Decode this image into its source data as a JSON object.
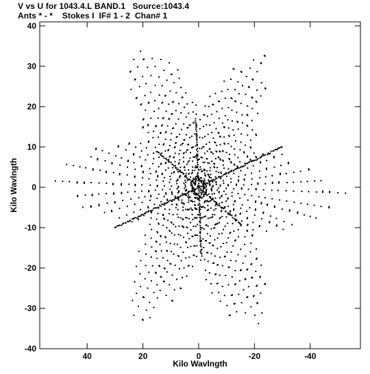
{
  "header": {
    "line1": "V vs U for 1043.4.L BAND.1   Source:1043.4",
    "line2": "Ants * - *    Stokes I  IF# 1 - 2  Chan# 1"
  },
  "chart_data": {
    "type": "scatter",
    "title": "V vs U for 1043.4.L BAND.1   Source:1043.4",
    "subtitle": "Ants * - *    Stokes I  IF# 1 - 2  Chan# 1",
    "xlabel": "Kilo Wavlngth",
    "ylabel": "Kilo Wavlngth",
    "xlim": [
      57,
      -58
    ],
    "ylim": [
      -40,
      41
    ],
    "x_reversed": true,
    "xticks": [
      40,
      20,
      0,
      -20,
      -40
    ],
    "xtick_labels": [
      "40",
      "20",
      "0",
      "-20",
      "-40"
    ],
    "yticks": [
      40,
      30,
      20,
      10,
      0,
      -10,
      -20,
      -30,
      -40
    ],
    "ytick_labels": [
      "40",
      "30",
      "20",
      "10",
      "0",
      "-10",
      "-20",
      "-30",
      "-40"
    ],
    "grid": false,
    "marker_color": "#000000",
    "description_of_data": "uv-coverage: six-armed star of radial point tracks, symmetric about the origin",
    "arms": [
      {
        "tip": [
          25,
          38
        ]
      },
      {
        "tip": [
          -25,
          35
        ]
      },
      {
        "tip": [
          -55,
          -3
        ]
      },
      {
        "tip": [
          -25,
          -38
        ]
      },
      {
        "tip": [
          25,
          -35
        ]
      },
      {
        "tip": [
          55,
          3
        ]
      }
    ],
    "dense_baselines": [
      {
        "from": [
          -30,
          10
        ],
        "to": [
          30,
          -10
        ]
      },
      {
        "from": [
          15,
          9
        ],
        "to": [
          -15,
          -9
        ]
      },
      {
        "from": [
          1,
          17
        ],
        "to": [
          -1,
          -17
        ]
      }
    ]
  }
}
